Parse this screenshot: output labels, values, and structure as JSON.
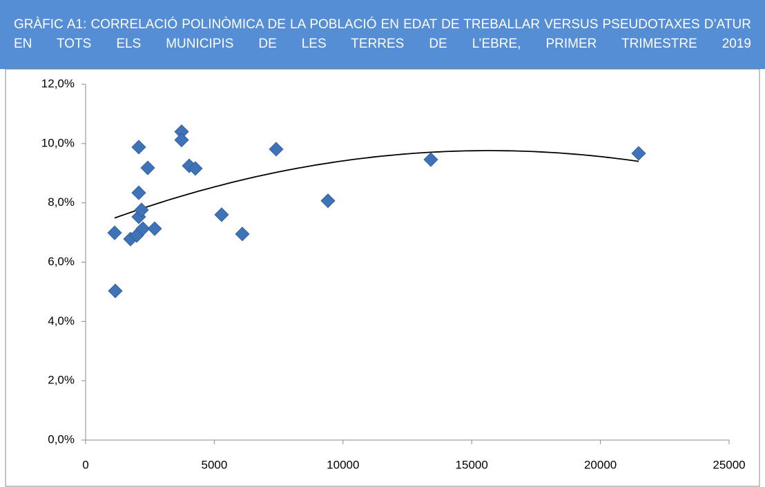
{
  "chart_data": {
    "type": "scatter",
    "title": "GRÀFIC A1: CORRELACIÓ POLINÒMICA DE LA POBLACIÓ EN EDAT DE TREBALLAR VERSUS PSEUDOTAXES D’ATUR EN TOTS ELS MUNICIPIS DE LES TERRES DE L’EBRE, PRIMER TRIMESTRE 2019",
    "x": [
      1127,
      1153,
      1744,
      1985,
      2065,
      2065,
      2065,
      2173,
      2226,
      2414,
      2682,
      3729,
      3729,
      4024,
      4265,
      5284,
      6089,
      7403,
      9415,
      13412,
      21486
    ],
    "values": [
      6.99,
      5.03,
      6.78,
      6.9,
      9.88,
      8.34,
      7.53,
      7.76,
      7.13,
      9.18,
      7.13,
      10.4,
      10.12,
      9.25,
      9.16,
      7.6,
      6.95,
      9.81,
      8.07,
      9.46,
      9.67
    ],
    "color": "#3f73b8",
    "trendline": {
      "type": "polynomial",
      "order": 2,
      "color": "#000000"
    },
    "xlim": [
      0,
      25000
    ],
    "xticks": [
      0,
      5000,
      10000,
      15000,
      20000,
      25000
    ],
    "ylim": [
      0,
      12
    ],
    "yticks": [
      {
        "value": 0,
        "label": "0,0%"
      },
      {
        "value": 2,
        "label": "2,0%"
      },
      {
        "value": 4,
        "label": "4,0%"
      },
      {
        "value": 6,
        "label": "6,0%"
      },
      {
        "value": 8,
        "label": "8,0%"
      },
      {
        "value": 10,
        "label": "10,0%"
      },
      {
        "value": 12,
        "label": "12,0%"
      }
    ],
    "grid": false
  }
}
